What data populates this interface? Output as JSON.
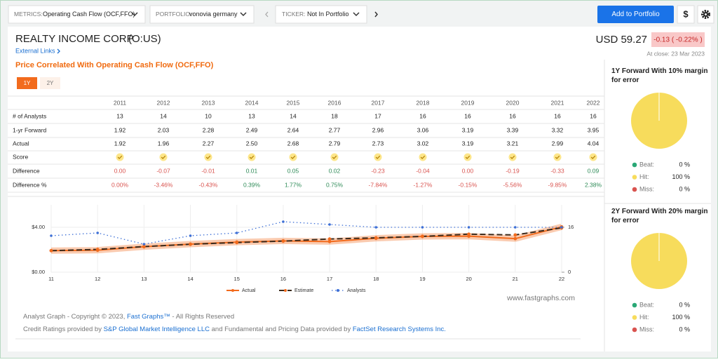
{
  "toolbar": {
    "metrics_label": "METRICS:",
    "metrics_value": "Operating Cash Flow (OCF,FFO)",
    "portfolio_label": "PORTFOLIO:",
    "portfolio_value": "vonovia germany",
    "ticker_label": "TICKER:",
    "ticker_value": "Not In Portfolio",
    "add_button": "Add to Portfolio",
    "currency_button": "$"
  },
  "header": {
    "company": "REALTY INCOME CORP",
    "ticker": "(O:US)",
    "external_links": "External Links",
    "price": "USD 59.27",
    "change": "-0.13 ( -0.22% )",
    "close_date": "At close: 23 Mar 2023"
  },
  "section_title": "Price Correlated With Operating Cash Flow (OCF,FFO)",
  "tabs": [
    "1Y",
    "2Y"
  ],
  "table": {
    "years": [
      "2011",
      "2012",
      "2013",
      "2014",
      "2015",
      "2016",
      "2017",
      "2018",
      "2019",
      "2020",
      "2021",
      "2022"
    ],
    "rows": [
      {
        "label": "# of Analysts",
        "values": [
          "13",
          "14",
          "10",
          "13",
          "14",
          "18",
          "17",
          "16",
          "16",
          "16",
          "16",
          "16"
        ]
      },
      {
        "label": "1-yr Forward",
        "values": [
          "1.92",
          "2.03",
          "2.28",
          "2.49",
          "2.64",
          "2.77",
          "2.96",
          "3.06",
          "3.19",
          "3.39",
          "3.32",
          "3.95"
        ]
      },
      {
        "label": "Actual",
        "values": [
          "1.92",
          "1.96",
          "2.27",
          "2.50",
          "2.68",
          "2.79",
          "2.73",
          "3.02",
          "3.19",
          "3.21",
          "2.99",
          "4.04"
        ]
      },
      {
        "label": "Score"
      },
      {
        "label": "Difference",
        "values": [
          "0.00",
          "-0.07",
          "-0.01",
          "0.01",
          "0.05",
          "0.02",
          "-0.23",
          "-0.04",
          "0.00",
          "-0.19",
          "-0.33",
          "0.09"
        ]
      },
      {
        "label": "Difference %",
        "values": [
          "0.00%",
          "-3.46%",
          "-0.43%",
          "0.39%",
          "1.77%",
          "0.75%",
          "-7.84%",
          "-1.27%",
          "-0.15%",
          "-5.56%",
          "-9.85%",
          "2.38%"
        ]
      }
    ]
  },
  "chart_data": {
    "type": "line",
    "x": [
      "11",
      "12",
      "13",
      "14",
      "15",
      "16",
      "17",
      "18",
      "19",
      "20",
      "21",
      "22"
    ],
    "series": [
      {
        "name": "Actual",
        "color": "#f26b1d",
        "values": [
          1.92,
          1.96,
          2.27,
          2.5,
          2.68,
          2.79,
          2.73,
          3.02,
          3.19,
          3.21,
          2.99,
          4.04
        ]
      },
      {
        "name": "Estimate",
        "color": "#3b2a1c",
        "values": [
          1.92,
          2.03,
          2.28,
          2.49,
          2.64,
          2.77,
          2.96,
          3.06,
          3.19,
          3.39,
          3.32,
          3.95
        ]
      },
      {
        "name": "Analysts",
        "color": "#3d6fd6",
        "axis": "y2",
        "values": [
          13,
          14,
          10,
          13,
          14,
          18,
          17,
          16,
          16,
          16,
          16,
          16
        ]
      }
    ],
    "ylim": [
      0,
      6
    ],
    "yticks": [
      {
        "value": 0,
        "label": "$0.00"
      },
      {
        "value": 4,
        "label": "$4.00"
      }
    ],
    "y2lim": [
      0,
      24
    ],
    "y2ticks": [
      0,
      16
    ],
    "grid": true
  },
  "watermark": "www.fastgraphs.com",
  "footer": {
    "line1": [
      "Analyst Graph - Copyright © 2023, ",
      "Fast Graphs™",
      " - All Rights Reserved"
    ],
    "line2": [
      "Credit Ratings provided by ",
      "S&P Global Market Intelligence LLC",
      " and Fundamental and Pricing Data provided by ",
      "FactSet Research Systems Inc."
    ]
  },
  "panels": [
    {
      "title": "1Y Forward With 10% margin for error",
      "slices": [
        {
          "name": "Beat:",
          "value": 0,
          "label": "0 %",
          "color": "#2aa876"
        },
        {
          "name": "Hit:",
          "value": 100,
          "label": "100 %",
          "color": "#f7dc5c"
        },
        {
          "name": "Miss:",
          "value": 0,
          "label": "0 %",
          "color": "#d9534f"
        }
      ]
    },
    {
      "title": "2Y Forward With 20% margin for error",
      "slices": [
        {
          "name": "Beat:",
          "value": 0,
          "label": "0 %",
          "color": "#2aa876"
        },
        {
          "name": "Hit:",
          "value": 100,
          "label": "100 %",
          "color": "#f7dc5c"
        },
        {
          "name": "Miss:",
          "value": 0,
          "label": "0 %",
          "color": "#d9534f"
        }
      ]
    }
  ]
}
